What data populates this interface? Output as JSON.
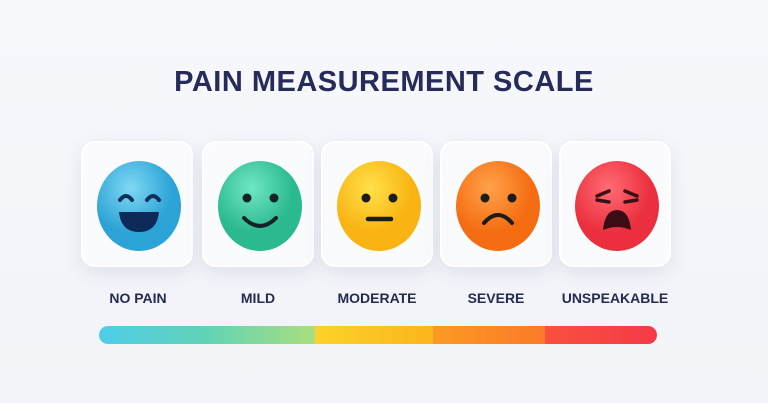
{
  "title": "PAIN MEASUREMENT SCALE",
  "levels": [
    {
      "label": "NO PAIN",
      "icon": "laughing-face-icon",
      "color": "#3bb6e2"
    },
    {
      "label": "MILD",
      "icon": "smiling-face-icon",
      "color": "#3ccfa4"
    },
    {
      "label": "MODERATE",
      "icon": "neutral-face-icon",
      "color": "#fcc21b"
    },
    {
      "label": "SEVERE",
      "icon": "frowning-face-icon",
      "color": "#fb7d22"
    },
    {
      "label": "UNSPEAKABLE",
      "icon": "anguished-face-icon",
      "color": "#f43d4a"
    }
  ]
}
